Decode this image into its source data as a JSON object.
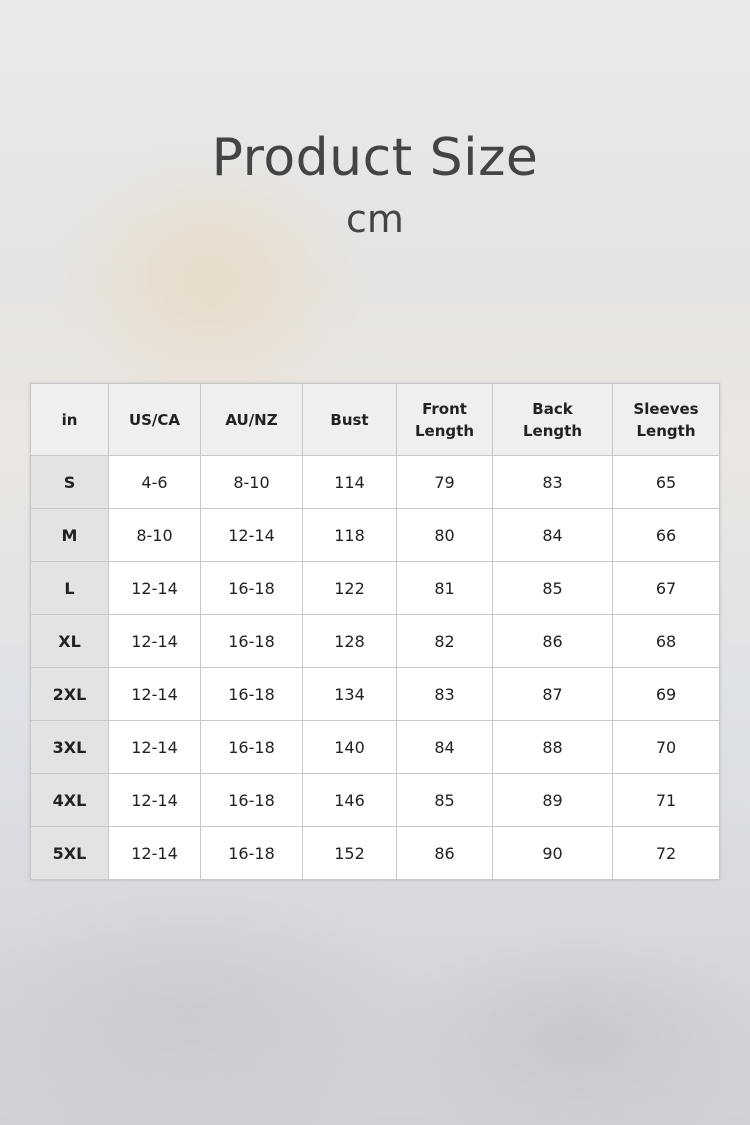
{
  "title": "Product Size",
  "unit": "cm",
  "table": {
    "headers": [
      "in",
      "US/CA",
      "AU/NZ",
      "Bust",
      "Front\nLength",
      "Back\nLength",
      "Sleeves\nLength"
    ],
    "rows": [
      [
        "S",
        "4-6",
        "8-10",
        "114",
        "79",
        "83",
        "65"
      ],
      [
        "M",
        "8-10",
        "12-14",
        "118",
        "80",
        "84",
        "66"
      ],
      [
        "L",
        "12-14",
        "16-18",
        "122",
        "81",
        "85",
        "67"
      ],
      [
        "XL",
        "12-14",
        "16-18",
        "128",
        "82",
        "86",
        "68"
      ],
      [
        "2XL",
        "12-14",
        "16-18",
        "134",
        "83",
        "87",
        "69"
      ],
      [
        "3XL",
        "12-14",
        "16-18",
        "140",
        "84",
        "88",
        "70"
      ],
      [
        "4XL",
        "12-14",
        "16-18",
        "146",
        "85",
        "89",
        "71"
      ],
      [
        "5XL",
        "12-14",
        "16-18",
        "152",
        "86",
        "90",
        "72"
      ]
    ]
  }
}
